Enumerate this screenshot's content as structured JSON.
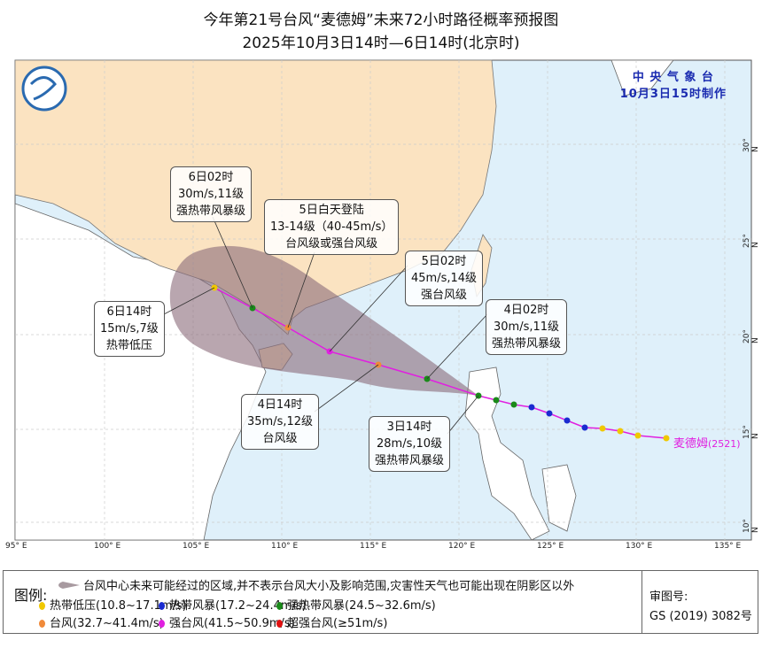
{
  "title": {
    "line1": "今年第21号台风“麦德姆”未来72小时路径概率预报图",
    "line2": "2025年10月3日14时—6日14时(北京时)"
  },
  "agency": {
    "name": "中 央 气 象 台",
    "made": "10月3日15时制作"
  },
  "typhoon": {
    "name": "麦德姆",
    "code": "(2521)"
  },
  "axes": {
    "lon": [
      "95° E",
      "100° E",
      "105° E",
      "110° E",
      "115° E",
      "120° E",
      "125° E",
      "130° E",
      "135° E"
    ],
    "lat": [
      "30° N",
      "25° N",
      "20° N",
      "15° N",
      "10° N"
    ]
  },
  "callouts": [
    {
      "time": "6日02时",
      "wind": "30m/s,11级",
      "level": "强热带风暴级"
    },
    {
      "time": "5日白天登陆",
      "wind": "13-14级（40-45m/s）",
      "level": "台风级或强台风级"
    },
    {
      "time": "5日02时",
      "wind": "45m/s,14级",
      "level": "强台风级"
    },
    {
      "time": "4日02时",
      "wind": "30m/s,11级",
      "level": "强热带风暴级"
    },
    {
      "time": "6日14时",
      "wind": "15m/s,7级",
      "level": "热带低压"
    },
    {
      "time": "4日14时",
      "wind": "35m/s,12级",
      "level": "台风级"
    },
    {
      "time": "3日14时",
      "wind": "28m/s,10级",
      "level": "强热带风暴级"
    }
  ],
  "colors": {
    "td": "#f0c800",
    "ts": "#1a2bd0",
    "sts": "#1a8a1a",
    "ty": "#f08a3a",
    "sty": "#e020e0",
    "superty": "#e01010",
    "cone": "#8a6a7a",
    "china": "#fbe3c1",
    "sea": "#dff0fa"
  },
  "legend": {
    "header": "图例:",
    "cone": "台风中心未来可能经过的区域,并不表示台风大小及影响范围,灾害性天气也可能出现在阴影区以外",
    "items": [
      "热带低压(10.8~17.1m/s)",
      "热带风暴(17.2~24.4m/s)",
      "强热带风暴(24.5~32.6m/s)",
      "台风(32.7~41.4m/s)",
      "强台风(41.5~50.9m/s)",
      "超强台风(≥51m/s)"
    ],
    "audit_label": "审图号:",
    "audit_no": "GS (2019) 3082号"
  }
}
